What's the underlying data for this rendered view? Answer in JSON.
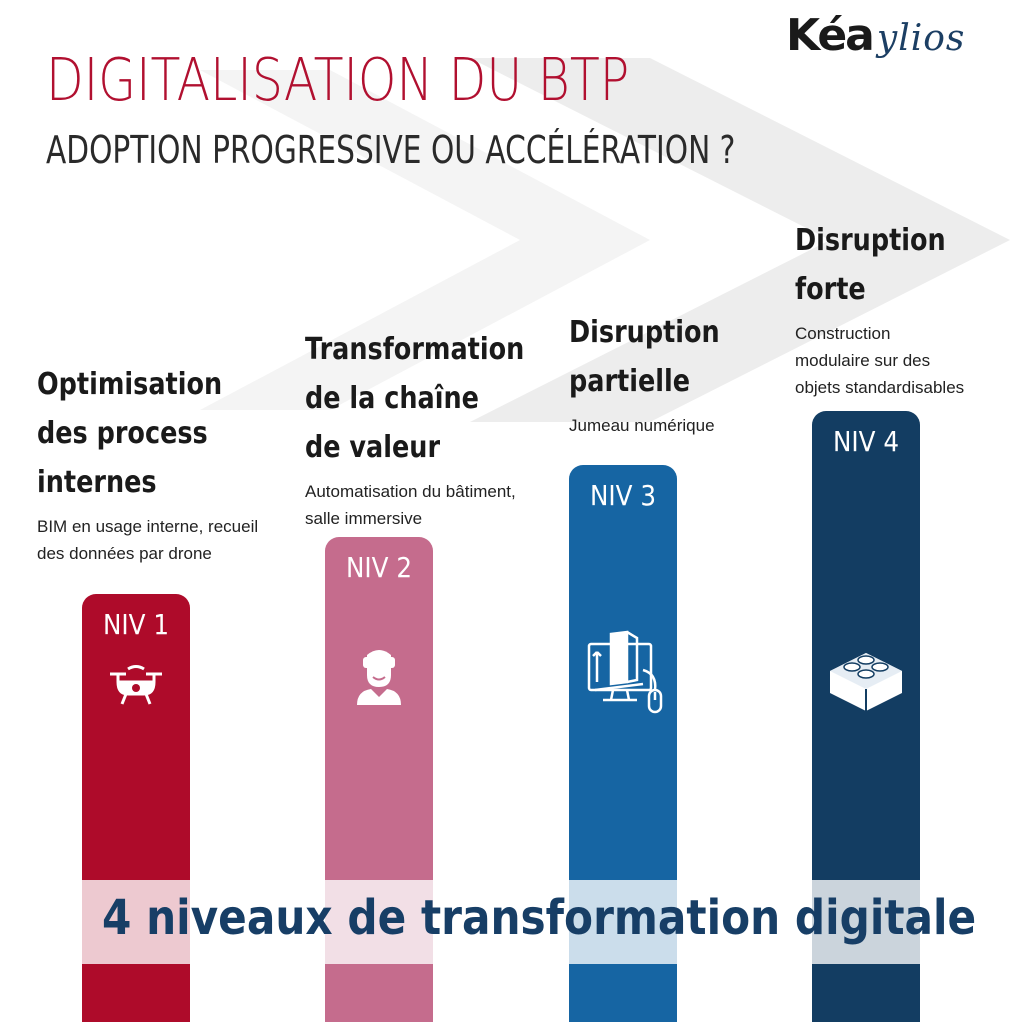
{
  "logo": {
    "part1": "Kéa",
    "part2": "ylios"
  },
  "title": "DIGITALISATION DU BTP",
  "subtitle": "ADOPTION PROGRESSIVE OU ACCÉLÉRATION ?",
  "levels": [
    {
      "niv": "NIV 1",
      "heading": "Optimisation\ndes process\ninternes",
      "description": "BIM en usage interne, recueil\ndes données par drone",
      "color": "#ae0b2a",
      "icon": "drone-icon"
    },
    {
      "niv": "NIV 2",
      "heading": "Transformation\nde la chaîne\nde valeur",
      "description": "Automatisation du bâtiment,\nsalle immersive",
      "color": "#c56c8d",
      "icon": "vr-headset-icon"
    },
    {
      "niv": "NIV 3",
      "heading": "Disruption\npartielle",
      "description": "Jumeau numérique",
      "color": "#1665a3",
      "icon": "digital-twin-icon"
    },
    {
      "niv": "NIV 4",
      "heading": "Disruption\nforte",
      "description": "Construction\nmodulaire sur des\nobjets standardisables",
      "color": "#133d62",
      "icon": "building-block-icon"
    }
  ],
  "banner": "4 niveaux de transformation digitale"
}
